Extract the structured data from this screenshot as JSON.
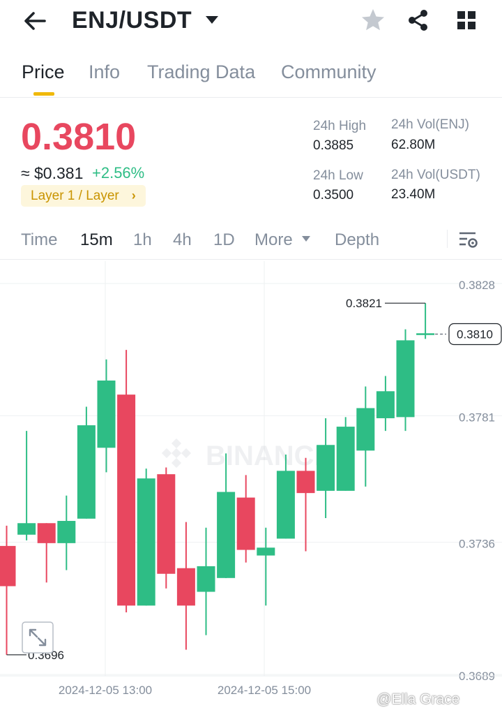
{
  "header": {
    "pair": "ENJ/USDT",
    "icons": [
      "back-arrow-icon",
      "caret-down-icon",
      "star-icon",
      "share-icon",
      "grid-icon"
    ]
  },
  "tabs": [
    {
      "label": "Price",
      "active": true
    },
    {
      "label": "Info",
      "active": false
    },
    {
      "label": "Trading Data",
      "active": false
    },
    {
      "label": "Community",
      "active": false
    }
  ],
  "price": {
    "last": "0.3810",
    "approx": "≈ $0.381",
    "change": "+2.56%",
    "tag": "Layer 1 / Layer",
    "colors": {
      "down": "#e8475f",
      "up": "#2ebd85",
      "accent": "#f0b90b"
    }
  },
  "stats": {
    "high_label": "24h High",
    "high": "0.3885",
    "low_label": "24h Low",
    "low": "0.3500",
    "vol_base_label": "24h Vol(ENJ)",
    "vol_base": "62.80M",
    "vol_quote_label": "24h Vol(USDT)",
    "vol_quote": "23.40M"
  },
  "intervals": {
    "items": [
      "Time",
      "15m",
      "1h",
      "4h",
      "1D",
      "More",
      "Depth"
    ],
    "active": "15m"
  },
  "chart_data": {
    "type": "candlestick",
    "y_ticks": [
      "0.3828",
      "0.3781",
      "0.3736",
      "0.3689"
    ],
    "x_ticks": [
      "2024-12-05 13:00",
      "2024-12-05 15:00"
    ],
    "last_price_marker": "0.3810",
    "max_label": "0.3821",
    "min_label": "0.3696",
    "watermark": "BINANCE",
    "candles": [
      {
        "o": 0.37347,
        "h": 0.37419,
        "l": 0.3696,
        "c": 0.37204
      },
      {
        "o": 0.37387,
        "h": 0.37756,
        "l": 0.37367,
        "c": 0.37428
      },
      {
        "o": 0.37428,
        "h": 0.37428,
        "l": 0.37217,
        "c": 0.37357
      },
      {
        "o": 0.37357,
        "h": 0.37526,
        "l": 0.37261,
        "c": 0.37436
      },
      {
        "o": 0.37444,
        "h": 0.37842,
        "l": 0.37444,
        "c": 0.37776
      },
      {
        "o": 0.37696,
        "h": 0.3801,
        "l": 0.37609,
        "c": 0.37935
      },
      {
        "o": 0.37885,
        "h": 0.38044,
        "l": 0.37111,
        "c": 0.37135
      },
      {
        "o": 0.37135,
        "h": 0.37622,
        "l": 0.37135,
        "c": 0.37587
      },
      {
        "o": 0.37602,
        "h": 0.37626,
        "l": 0.37196,
        "c": 0.37248
      },
      {
        "o": 0.37268,
        "h": 0.37432,
        "l": 0.36978,
        "c": 0.37135
      },
      {
        "o": 0.37184,
        "h": 0.37412,
        "l": 0.3703,
        "c": 0.37275
      },
      {
        "o": 0.37233,
        "h": 0.37676,
        "l": 0.37233,
        "c": 0.37539
      },
      {
        "o": 0.37519,
        "h": 0.37599,
        "l": 0.37288,
        "c": 0.37333
      },
      {
        "o": 0.37313,
        "h": 0.37412,
        "l": 0.37135,
        "c": 0.37341
      },
      {
        "o": 0.37373,
        "h": 0.37672,
        "l": 0.37373,
        "c": 0.37614
      },
      {
        "o": 0.37614,
        "h": 0.3766,
        "l": 0.37328,
        "c": 0.37535
      },
      {
        "o": 0.37543,
        "h": 0.37801,
        "l": 0.37446,
        "c": 0.37706
      },
      {
        "o": 0.37543,
        "h": 0.37805,
        "l": 0.37543,
        "c": 0.37771
      },
      {
        "o": 0.37686,
        "h": 0.37914,
        "l": 0.37558,
        "c": 0.37837
      },
      {
        "o": 0.37801,
        "h": 0.37951,
        "l": 0.37756,
        "c": 0.37897
      },
      {
        "o": 0.37805,
        "h": 0.38117,
        "l": 0.37756,
        "c": 0.38078
      },
      {
        "o": 0.38103,
        "h": 0.3821,
        "l": 0.38083,
        "c": 0.38103
      }
    ],
    "ylim": [
      0.3685,
      0.3833
    ]
  },
  "attribution": "@Ella Grace"
}
